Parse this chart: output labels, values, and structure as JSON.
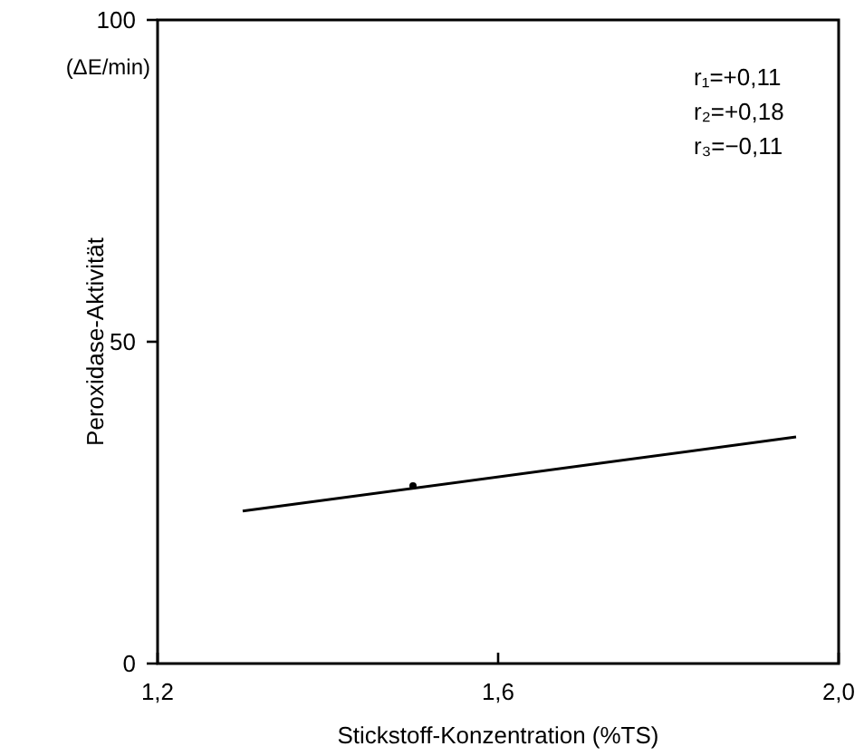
{
  "chart_data": {
    "type": "line",
    "xlabel": "Stickstoff-Konzentration (%TS)",
    "ylabel": "Peroxidase-Aktivität",
    "annotations": [
      "(ΔE/min)",
      "r₁=+0,11",
      "r₂=+0,18",
      "r₃=−0,11"
    ],
    "series": [
      {
        "color": "#000000",
        "x": [
          1.3,
          1.95
        ],
        "values": [
          23.7,
          35.2
        ],
        "marker": "none"
      },
      {
        "type": "scatter",
        "color": "#000000",
        "x": [
          1.5
        ],
        "values": [
          27.6
        ],
        "marker": "circle"
      }
    ],
    "xlim": [
      1.2,
      2.0
    ],
    "xticks": [
      {
        "value": 1.2,
        "label": "1,2"
      },
      {
        "value": 1.6,
        "label": "1,6"
      },
      {
        "value": 2.0,
        "label": "2,0"
      }
    ],
    "ylim": [
      0,
      100
    ],
    "yticks": [
      0,
      50,
      100
    ],
    "grid": false,
    "line_style": "solid"
  }
}
